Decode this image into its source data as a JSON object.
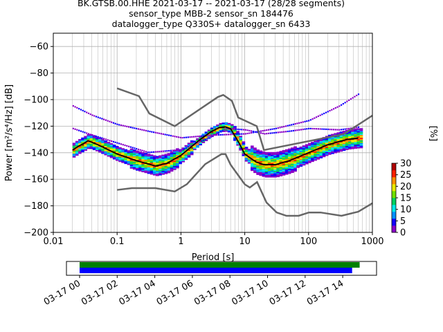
{
  "header": {
    "title_line1": "BK.GTSB.00.HHE   2021-03-17 -- 2021-03-17  (28/28 segments)",
    "title_line2": "sensor_type MBB-2 sensor_sn 184476",
    "title_line3": "datalogger_type Q330S+ datalogger_sn 6433"
  },
  "chart_data": {
    "type": "heatmap",
    "xlabel": "Period [s]",
    "ylabel": "Power [m²/s⁴/Hz] [dB]",
    "x_scale": "log",
    "xlim": [
      0.01,
      1000
    ],
    "ylim": [
      -200,
      -50
    ],
    "x_ticks": [
      0.01,
      0.1,
      1,
      10,
      100,
      1000
    ],
    "x_tick_labels": [
      "0.01",
      "0.1",
      "1",
      "10",
      "100",
      "1000"
    ],
    "y_ticks": [
      -200,
      -180,
      -160,
      -140,
      -120,
      -100,
      -80,
      -60
    ],
    "y_tick_labels": [
      "−200",
      "−180",
      "−160",
      "−140",
      "−120",
      "−100",
      "−80",
      "−60"
    ],
    "grid": true,
    "colorbar": {
      "label": "[%]",
      "min": 0,
      "max": 30,
      "ticks": [
        0,
        5,
        10,
        15,
        20,
        25,
        30
      ],
      "tick_labels": [
        "0",
        "5",
        "10",
        "15",
        "20",
        "25",
        "30"
      ],
      "colormap": [
        "#ffffff",
        "#8a00c8",
        "#1400ff",
        "#0090ff",
        "#00e8e8",
        "#00d060",
        "#70e000",
        "#e8e800",
        "#ff9000",
        "#ff2000",
        "#b00000"
      ]
    },
    "noise_models": {
      "color": "#666666",
      "high": {
        "x": [
          0.1,
          0.22,
          0.32,
          0.8,
          3.8,
          4.6,
          6.3,
          7.9,
          15.4,
          20,
          354.8,
          1000
        ],
        "y": [
          -91.5,
          -97.4,
          -110.5,
          -120,
          -98,
          -96.5,
          -101,
          -113.5,
          -120,
          -138,
          -126,
          -112
        ]
      },
      "low": {
        "x": [
          0.1,
          0.17,
          0.4,
          0.8,
          1.24,
          2.4,
          4.3,
          5,
          6,
          10,
          12,
          15.6,
          21.9,
          31.6,
          45,
          70,
          101,
          154,
          328,
          600,
          1000
        ],
        "y": [
          -168,
          -166.7,
          -166.7,
          -169.2,
          -163.7,
          -148.6,
          -141.1,
          -141.1,
          -149,
          -163.8,
          -166.2,
          -162.1,
          -177.5,
          -185,
          -187.5,
          -187.5,
          -185,
          -185,
          -187.5,
          -184.4,
          -178
        ]
      }
    },
    "median": {
      "color": "#000000",
      "x": [
        0.02,
        0.025,
        0.03,
        0.035,
        0.05,
        0.1,
        0.2,
        0.4,
        0.6,
        1,
        2,
        3,
        4,
        5,
        6,
        8,
        10,
        15,
        20,
        30,
        50,
        100,
        200,
        400,
        600
      ],
      "y": [
        -138,
        -135,
        -133,
        -131,
        -134,
        -141,
        -146,
        -150,
        -148,
        -142,
        -130,
        -124,
        -121,
        -120.5,
        -122,
        -132,
        -141,
        -147,
        -149,
        -149,
        -146,
        -140,
        -134,
        -130,
        -129
      ]
    },
    "outlier_traces": [
      {
        "x": [
          0.02,
          0.04,
          0.1,
          0.3,
          1,
          3,
          10,
          30,
          100,
          300,
          600
        ],
        "y": [
          -105,
          -112,
          -119,
          -124,
          -129,
          -127,
          -126,
          -122,
          -116,
          -105,
          -96
        ]
      },
      {
        "x": [
          0.02,
          0.04,
          0.1,
          0.3,
          1,
          3,
          5,
          10,
          20,
          50,
          100,
          300,
          600
        ],
        "y": [
          -122,
          -127,
          -133,
          -140,
          -138,
          -128,
          -122,
          -123,
          -126,
          -124,
          -122,
          -123,
          -121
        ]
      }
    ],
    "time_axis": {
      "tick_labels": [
        "03-17 00",
        "03-17 02",
        "03-17 04",
        "03-17 06",
        "03-17 08",
        "03-17 10",
        "03-17 12",
        "03-17 14"
      ],
      "range_hours": [
        -0.7,
        15.8
      ],
      "coverage": [
        {
          "start_hour": 0.0,
          "end_hour": 14.9,
          "color": "#008000"
        },
        {
          "start_hour": 0.0,
          "end_hour": 14.5,
          "color": "#0000ff"
        }
      ]
    }
  }
}
